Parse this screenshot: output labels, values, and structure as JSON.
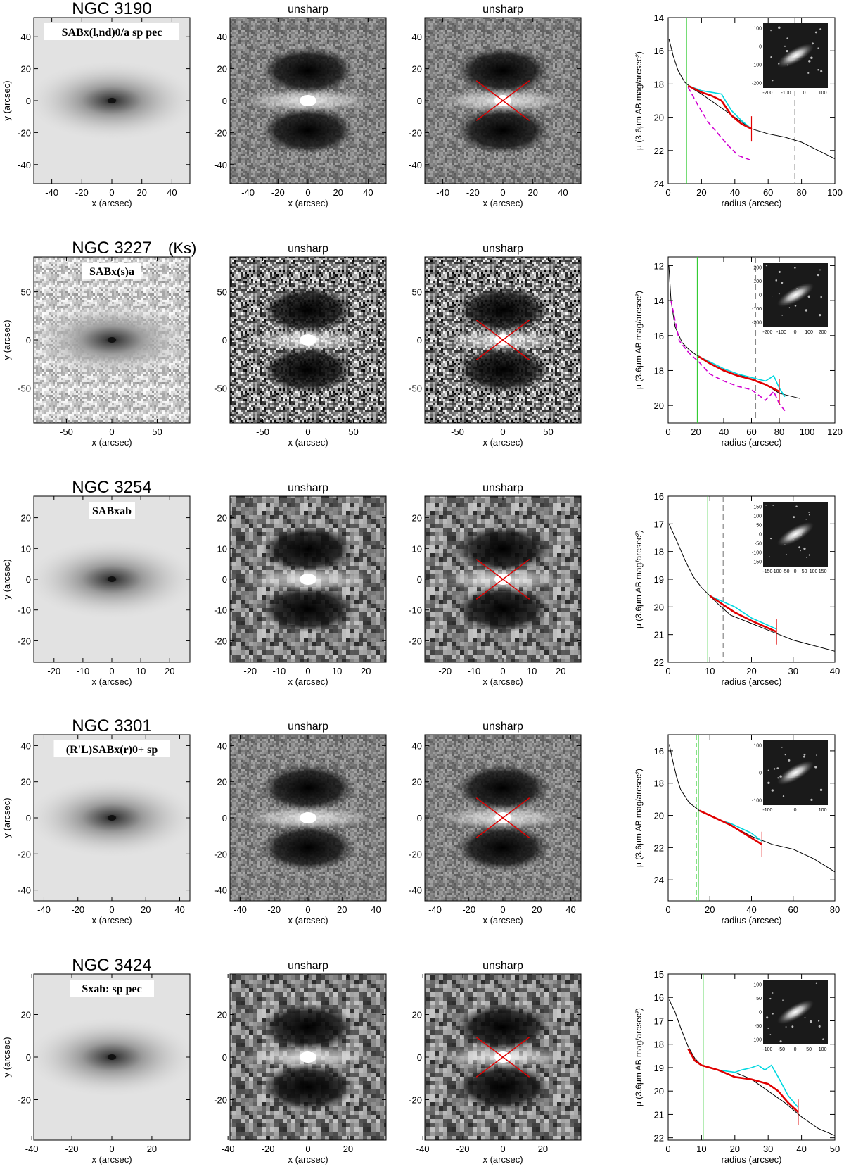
{
  "colors": {
    "profile_black": "#000000",
    "profile_red": "#e00000",
    "profile_cyan": "#00d8e0",
    "profile_magenta": "#d000d0",
    "bar_green": "#33cc33",
    "grid_gray": "#888888"
  },
  "unsharp_label": "unsharp",
  "x_axis_label": "x (arcsec)",
  "y_axis_label": "y (arcsec)",
  "radius_label": "radius (arcsec)",
  "mu_label": "μ (3.6μm AB mag/arcsec²)",
  "rows": [
    {
      "name": "NGC 3190",
      "classification": "SABx(l,nd)0/a sp pec",
      "image_range": [
        -52,
        52
      ],
      "image_x_ticks": [
        -40,
        -20,
        0,
        20,
        40
      ],
      "image_y_ticks": [
        40,
        20,
        0,
        -20,
        -40
      ],
      "image_noise": "low",
      "chart_data": {
        "type": "line",
        "xlim": [
          0,
          100
        ],
        "ylim": [
          24,
          14
        ],
        "x_ticks": [
          0,
          20,
          40,
          60,
          80,
          100
        ],
        "y_ticks": [
          14,
          16,
          18,
          20,
          22,
          24
        ],
        "green_line": 11,
        "gray_dashed": 76,
        "red_tick": 50,
        "inset_ticks_x": [
          -200,
          -100,
          0,
          100
        ],
        "inset_ticks_y": [
          100,
          0,
          -100,
          -200
        ],
        "series": [
          {
            "color": "black",
            "x": [
              0.5,
              3,
              6,
              10,
              15,
              20,
              30,
              40,
              50,
              60,
              70,
              80,
              90,
              100
            ],
            "y": [
              15.3,
              16.3,
              17.2,
              17.9,
              18.3,
              18.6,
              19.3,
              20.0,
              20.7,
              21.0,
              21.2,
              21.5,
              22.0,
              22.5
            ]
          },
          {
            "color": "cyan",
            "x": [
              12,
              20,
              26,
              32,
              38,
              44,
              50
            ],
            "y": [
              18.1,
              18.4,
              18.5,
              18.6,
              19.6,
              20.2,
              20.7
            ]
          },
          {
            "color": "red",
            "x": [
              12,
              20,
              26,
              32,
              38,
              44,
              50
            ],
            "y": [
              18.1,
              18.5,
              18.7,
              19.0,
              19.9,
              20.4,
              20.7
            ]
          },
          {
            "color": "magenta",
            "x": [
              12,
              18,
              24,
              30,
              36,
              42,
              50
            ],
            "y": [
              18.2,
              19.3,
              20.3,
              21.0,
              21.7,
              22.3,
              22.6
            ]
          }
        ]
      }
    },
    {
      "name": "NGC 3227",
      "band": "(Ks)",
      "classification": "SABx(s)a",
      "image_range": [
        -86,
        86
      ],
      "image_x_ticks": [
        -50,
        0,
        50
      ],
      "image_y_ticks": [
        50,
        0,
        -50
      ],
      "image_noise": "high",
      "chart_data": {
        "type": "line",
        "xlim": [
          0,
          120
        ],
        "ylim": [
          21,
          11.5
        ],
        "x_ticks": [
          0,
          20,
          40,
          60,
          80,
          100,
          120
        ],
        "y_ticks": [
          12,
          14,
          16,
          18,
          20
        ],
        "green_line": 21,
        "gray_dashed": 63,
        "red_tick": 80,
        "inset_ticks_x": [
          -200,
          -100,
          0,
          100,
          200
        ],
        "inset_ticks_y": [
          200,
          100,
          0,
          -100,
          -200
        ],
        "series": [
          {
            "color": "black",
            "x": [
              0.5,
              2,
              5,
              10,
              15,
              20,
              30,
              40,
              50,
              60,
              70,
              80,
              95
            ],
            "y": [
              12.0,
              14.0,
              15.5,
              16.4,
              16.8,
              17.1,
              17.5,
              17.9,
              18.2,
              18.5,
              18.8,
              19.3,
              19.6
            ]
          },
          {
            "color": "cyan",
            "x": [
              22,
              30,
              40,
              50,
              60,
              70,
              76,
              80,
              84
            ],
            "y": [
              17.2,
              17.5,
              17.9,
              18.2,
              18.4,
              18.6,
              18.3,
              19.0,
              19.5
            ]
          },
          {
            "color": "red",
            "x": [
              22,
              30,
              40,
              50,
              60,
              70,
              80
            ],
            "y": [
              17.2,
              17.6,
              18.0,
              18.3,
              18.5,
              18.8,
              19.2
            ]
          },
          {
            "color": "magenta",
            "x": [
              2,
              8,
              15,
              22,
              30,
              40,
              50,
              60,
              70,
              76,
              80,
              84
            ],
            "y": [
              14.0,
              16.3,
              17.0,
              17.5,
              18.2,
              18.6,
              18.9,
              19.1,
              19.7,
              19.2,
              19.9,
              20.3
            ]
          }
        ]
      }
    },
    {
      "name": "NGC 3254",
      "classification": "SABxab",
      "image_range": [
        -27,
        27
      ],
      "image_x_ticks": [
        -20,
        -10,
        0,
        10,
        20
      ],
      "image_y_ticks": [
        20,
        10,
        0,
        -10,
        -20
      ],
      "image_noise": "medium",
      "chart_data": {
        "type": "line",
        "xlim": [
          0,
          40
        ],
        "ylim": [
          22,
          16
        ],
        "x_ticks": [
          0,
          10,
          20,
          30,
          40
        ],
        "y_ticks": [
          16,
          17,
          18,
          19,
          20,
          21,
          22
        ],
        "green_line": 9.5,
        "gray_dashed": 13.2,
        "red_tick": 26,
        "inset_ticks_x": [
          -150,
          -100,
          -50,
          0,
          50,
          100,
          150
        ],
        "inset_ticks_y": [
          150,
          100,
          50,
          0,
          -50,
          -100,
          -150
        ],
        "series": [
          {
            "color": "black",
            "x": [
              0.2,
              2,
              4,
              6,
              8,
              10,
              12,
              15,
              20,
              25,
              30,
              35,
              40
            ],
            "y": [
              17.0,
              17.6,
              18.3,
              18.9,
              19.3,
              19.6,
              19.9,
              20.3,
              20.6,
              20.9,
              21.2,
              21.4,
              21.6
            ]
          },
          {
            "color": "cyan",
            "x": [
              10,
              13,
              16,
              20,
              23,
              26
            ],
            "y": [
              19.6,
              19.8,
              20.0,
              20.4,
              20.6,
              20.8
            ]
          },
          {
            "color": "red",
            "x": [
              10,
              13,
              16,
              20,
              23,
              26
            ],
            "y": [
              19.6,
              19.9,
              20.2,
              20.5,
              20.7,
              20.9
            ]
          }
        ]
      }
    },
    {
      "name": "NGC 3301",
      "classification": "(R'L)SABx(r)0+ sp",
      "image_range": [
        -46,
        46
      ],
      "image_x_ticks": [
        -40,
        -20,
        0,
        20,
        40
      ],
      "image_y_ticks": [
        40,
        20,
        0,
        -20,
        -40
      ],
      "image_noise": "low",
      "chart_data": {
        "type": "line",
        "xlim": [
          0,
          80
        ],
        "ylim": [
          25.3,
          15
        ],
        "x_ticks": [
          0,
          20,
          40,
          60,
          80
        ],
        "y_ticks": [
          16,
          18,
          20,
          22,
          24
        ],
        "green_line": 14.5,
        "green_dashed": 13.5,
        "red_tick": 45,
        "inset_ticks_x": [
          -100,
          0,
          100
        ],
        "inset_ticks_y": [
          100,
          0,
          -100
        ],
        "series": [
          {
            "color": "black",
            "x": [
              0.5,
              2,
              4,
              6,
              10,
              15,
              20,
              30,
              40,
              50,
              60,
              70,
              80
            ],
            "y": [
              15.6,
              16.5,
              17.6,
              18.4,
              19.2,
              19.7,
              20.0,
              20.6,
              21.3,
              21.8,
              22.1,
              22.7,
              23.5
            ]
          },
          {
            "color": "cyan",
            "x": [
              15,
              20,
              25,
              30,
              35,
              40,
              45
            ],
            "y": [
              19.7,
              20.0,
              20.3,
              20.5,
              20.8,
              21.1,
              21.6
            ]
          },
          {
            "color": "red",
            "x": [
              15,
              20,
              25,
              30,
              35,
              40,
              45
            ],
            "y": [
              19.7,
              20.0,
              20.3,
              20.6,
              21.0,
              21.4,
              21.8
            ]
          }
        ]
      }
    },
    {
      "name": "NGC 3424",
      "classification": "Sxab: sp pec",
      "image_range": [
        -39,
        39
      ],
      "image_x_ticks": [
        -40,
        -20,
        0,
        20
      ],
      "image_y_ticks": [
        20,
        0,
        -20
      ],
      "image_noise": "medium",
      "chart_data": {
        "type": "line",
        "xlim": [
          0,
          50
        ],
        "ylim": [
          22.1,
          15
        ],
        "x_ticks": [
          0,
          10,
          20,
          30,
          40,
          50
        ],
        "y_ticks": [
          15,
          16,
          17,
          18,
          19,
          20,
          21,
          22
        ],
        "green_line": 10.5,
        "red_tick": 39,
        "inset_ticks_x": [
          -100,
          -50,
          0,
          50,
          100
        ],
        "inset_ticks_y": [
          100,
          50,
          0,
          -50,
          -100
        ],
        "series": [
          {
            "color": "black",
            "x": [
              0.3,
              2,
              4,
              6,
              8,
              10,
              15,
              20,
              25,
              30,
              35,
              40,
              45,
              50
            ],
            "y": [
              16.1,
              16.6,
              17.4,
              18.1,
              18.6,
              18.9,
              19.1,
              19.2,
              19.5,
              20.0,
              20.5,
              21.1,
              21.6,
              21.9
            ]
          },
          {
            "color": "cyan",
            "x": [
              10,
              15,
              20,
              22,
              25,
              27,
              29,
              31,
              33,
              36,
              39
            ],
            "y": [
              18.9,
              19.1,
              19.2,
              19.1,
              19.0,
              18.9,
              19.1,
              18.9,
              19.4,
              20.2,
              20.7
            ]
          },
          {
            "color": "red",
            "x": [
              6,
              8,
              10,
              15,
              20,
              25,
              30,
              33,
              36,
              39
            ],
            "y": [
              18.2,
              18.7,
              18.9,
              19.1,
              19.4,
              19.5,
              19.7,
              20.0,
              20.5,
              20.9
            ]
          }
        ]
      }
    }
  ]
}
